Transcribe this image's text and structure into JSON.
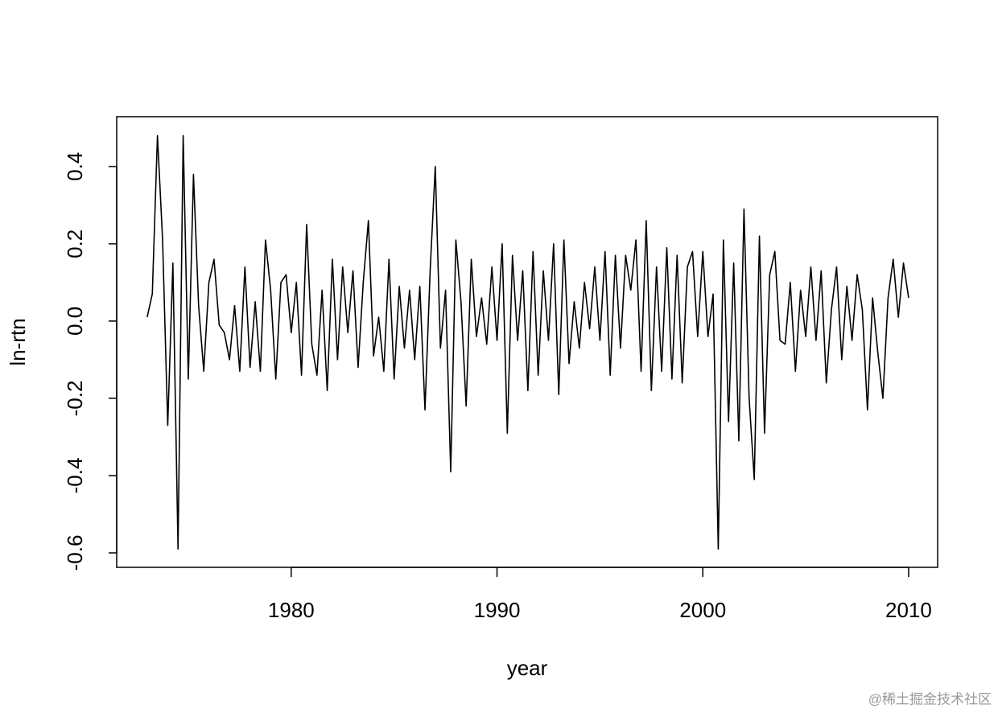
{
  "chart_data": {
    "type": "line",
    "x_label": "year",
    "y_label": "ln-rtn",
    "watermark": "@稀土掘金技术社区",
    "color": "#000000",
    "xlim": [
      1971.52,
      2011.41
    ],
    "ylim": [
      -0.6375,
      0.529
    ],
    "xticks": [
      1980,
      1990,
      2000,
      2010
    ],
    "yticks": [
      -0.6,
      -0.4,
      -0.2,
      {
        "value": 0,
        "label": "0.0"
      },
      0.2,
      0.4
    ],
    "x": [
      1973.0,
      1973.25,
      1973.5,
      1973.75,
      1974.0,
      1974.25,
      1974.5,
      1974.75,
      1975.0,
      1975.25,
      1975.5,
      1975.75,
      1976.0,
      1976.25,
      1976.5,
      1976.75,
      1977.0,
      1977.25,
      1977.5,
      1977.75,
      1978.0,
      1978.25,
      1978.5,
      1978.75,
      1979.0,
      1979.25,
      1979.5,
      1979.75,
      1980.0,
      1980.25,
      1980.5,
      1980.75,
      1981.0,
      1981.25,
      1981.5,
      1981.75,
      1982.0,
      1982.25,
      1982.5,
      1982.75,
      1983.0,
      1983.25,
      1983.5,
      1983.75,
      1984.0,
      1984.25,
      1984.5,
      1984.75,
      1985.0,
      1985.25,
      1985.5,
      1985.75,
      1986.0,
      1986.25,
      1986.5,
      1986.75,
      1987.0,
      1987.25,
      1987.5,
      1987.75,
      1988.0,
      1988.25,
      1988.5,
      1988.75,
      1989.0,
      1989.25,
      1989.5,
      1989.75,
      1990.0,
      1990.25,
      1990.5,
      1990.75,
      1991.0,
      1991.25,
      1991.5,
      1991.75,
      1992.0,
      1992.25,
      1992.5,
      1992.75,
      1993.0,
      1993.25,
      1993.5,
      1993.75,
      1994.0,
      1994.25,
      1994.5,
      1994.75,
      1995.0,
      1995.25,
      1995.5,
      1995.75,
      1996.0,
      1996.25,
      1996.5,
      1996.75,
      1997.0,
      1997.25,
      1997.5,
      1997.75,
      1998.0,
      1998.25,
      1998.5,
      1998.75,
      1999.0,
      1999.25,
      1999.5,
      1999.75,
      2000.0,
      2000.25,
      2000.5,
      2000.75,
      2001.0,
      2001.25,
      2001.5,
      2001.75,
      2002.0,
      2002.25,
      2002.5,
      2002.75,
      2003.0,
      2003.25,
      2003.5,
      2003.75,
      2004.0,
      2004.25,
      2004.5,
      2004.75,
      2005.0,
      2005.25,
      2005.5,
      2005.75,
      2006.0,
      2006.25,
      2006.5,
      2006.75,
      2007.0,
      2007.25,
      2007.5,
      2007.75,
      2008.0,
      2008.25,
      2008.5,
      2008.75,
      2009.0,
      2009.25,
      2009.5,
      2009.75,
      2010.0
    ],
    "values": [
      0.01,
      0.07,
      0.48,
      0.21,
      -0.27,
      0.15,
      -0.59,
      0.48,
      -0.15,
      0.38,
      0.04,
      -0.13,
      0.1,
      0.16,
      -0.01,
      -0.03,
      -0.1,
      0.04,
      -0.13,
      0.14,
      -0.12,
      0.05,
      -0.13,
      0.21,
      0.08,
      -0.15,
      0.1,
      0.12,
      -0.03,
      0.1,
      -0.14,
      0.25,
      -0.06,
      -0.14,
      0.08,
      -0.18,
      0.16,
      -0.1,
      0.14,
      -0.03,
      0.13,
      -0.12,
      0.1,
      0.26,
      -0.09,
      0.01,
      -0.13,
      0.16,
      -0.15,
      0.09,
      -0.07,
      0.08,
      -0.1,
      0.09,
      -0.23,
      0.13,
      0.4,
      -0.07,
      0.08,
      -0.39,
      0.21,
      0.05,
      -0.22,
      0.16,
      -0.04,
      0.06,
      -0.06,
      0.14,
      -0.05,
      0.2,
      -0.29,
      0.17,
      -0.05,
      0.13,
      -0.18,
      0.18,
      -0.14,
      0.13,
      -0.05,
      0.2,
      -0.19,
      0.21,
      -0.11,
      0.05,
      -0.07,
      0.1,
      -0.02,
      0.14,
      -0.05,
      0.18,
      -0.14,
      0.17,
      -0.07,
      0.17,
      0.08,
      0.21,
      -0.13,
      0.26,
      -0.18,
      0.14,
      -0.13,
      0.19,
      -0.15,
      0.17,
      -0.16,
      0.14,
      0.18,
      -0.04,
      0.18,
      -0.04,
      0.07,
      -0.59,
      0.21,
      -0.26,
      0.15,
      -0.31,
      0.29,
      -0.2,
      -0.41,
      0.22,
      -0.29,
      0.12,
      0.18,
      -0.05,
      -0.06,
      0.1,
      -0.13,
      0.08,
      -0.04,
      0.14,
      -0.05,
      0.13,
      -0.16,
      0.03,
      0.14,
      -0.1,
      0.09,
      -0.05,
      0.12,
      0.03,
      -0.23,
      0.06,
      -0.08,
      -0.2,
      0.06,
      0.16,
      0.01,
      0.15,
      0.06
    ]
  }
}
